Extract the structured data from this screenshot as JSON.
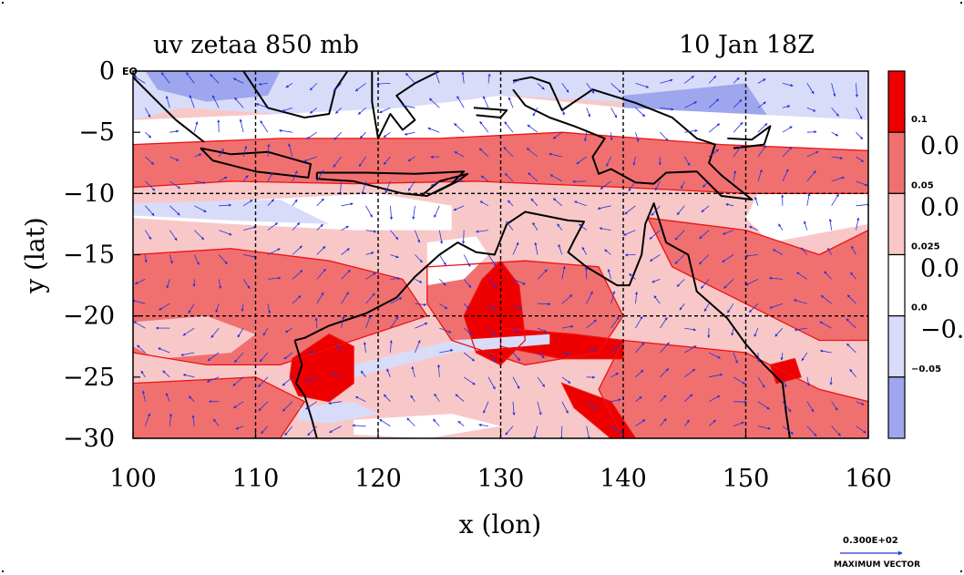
{
  "chart_data": {
    "type": "heatmap",
    "title_left": "uv zetaa 850 mb",
    "title_right": "10 Jan 18Z",
    "xlabel": "x (lon)",
    "ylabel": "y (lat)",
    "xlim": [
      100,
      160
    ],
    "ylim": [
      -30,
      0
    ],
    "x_ticks": [
      "100",
      "110",
      "120",
      "130",
      "140",
      "150",
      "160"
    ],
    "y_ticks": [
      "0",
      "−5",
      "−10",
      "−15",
      "−20",
      "−25",
      "−30"
    ],
    "grid_lon": [
      110,
      120,
      130,
      140,
      150
    ],
    "grid_lat": [
      -10,
      -20
    ],
    "corner_label": "EQ",
    "colorbar": {
      "levels": [
        "0.1",
        "0.05",
        "0.025",
        "0.0",
        "−0.05"
      ],
      "big_labels": [
        "0.0",
        "0.0",
        "0.0",
        "−0."
      ],
      "colors": [
        "#ee0000",
        "#f07070",
        "#f8c8c8",
        "#ffffff",
        "#d8dcf8",
        "#9ea6ee"
      ]
    },
    "vector_key": {
      "value": "0.300E+02",
      "label": "MAXIMUM VECTOR"
    },
    "colors": {
      "strong_pos": "#ee0000",
      "mid_pos": "#f07070",
      "weak_pos": "#f8c8c8",
      "neutral": "#ffffff",
      "weak_neg": "#d8dcf8",
      "strong_neg": "#9ea6ee",
      "contour": "#ee1111",
      "vector": "#2233dd",
      "coast": "#000000"
    }
  }
}
